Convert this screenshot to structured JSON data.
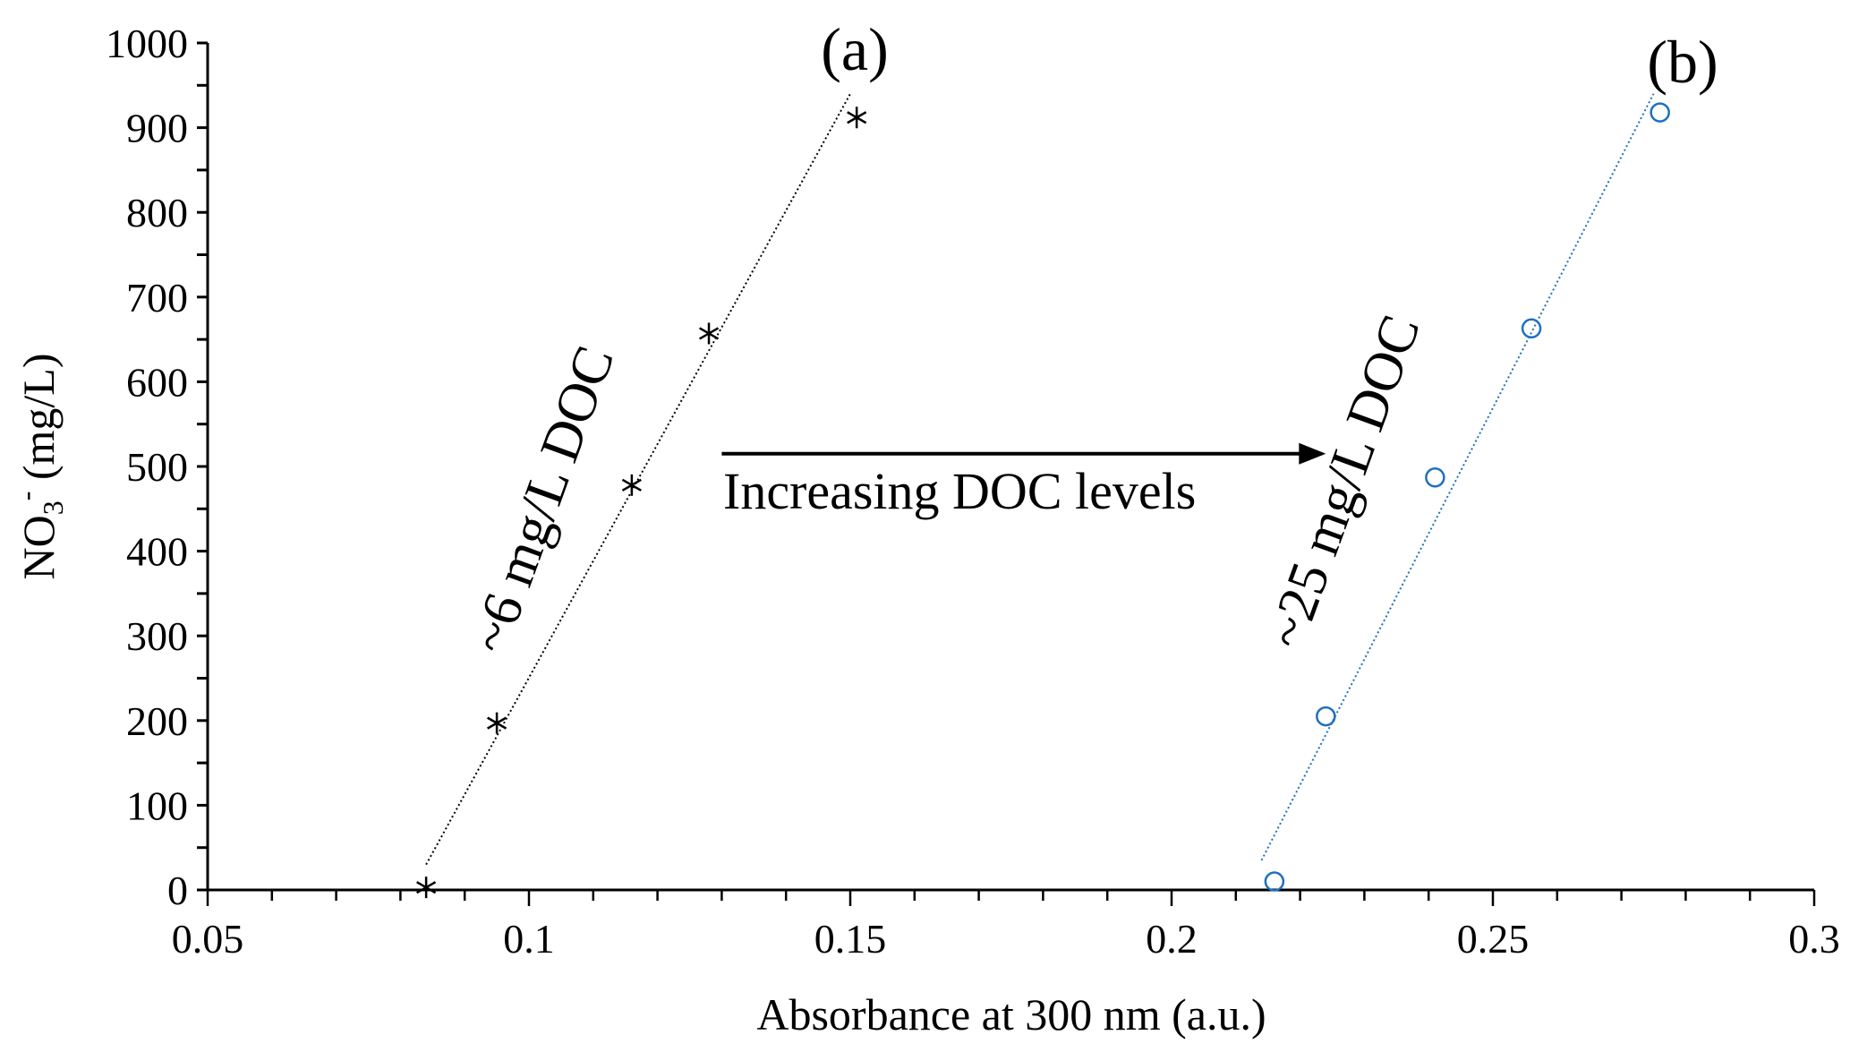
{
  "chart_data": {
    "type": "scatter",
    "xlabel": "Absorbance at 300 nm (a.u.)",
    "ylabel_main": "NO",
    "ylabel_sub": "3",
    "ylabel_sup": "-",
    "ylabel_rest": " (mg/L)",
    "xlim": [
      0.05,
      0.3
    ],
    "ylim": [
      0,
      1000
    ],
    "xticks": [
      "0.05",
      "0.1",
      "0.15",
      "0.2",
      "0.25",
      "0.3"
    ],
    "yticks": [
      "0",
      "100",
      "200",
      "300",
      "400",
      "500",
      "600",
      "700",
      "800",
      "900",
      "1000"
    ],
    "grid": false,
    "series": [
      {
        "name": "(a)",
        "label": "~6 mg/L DOC",
        "marker": "asterisk",
        "color": "#000000",
        "x": [
          0.084,
          0.095,
          0.116,
          0.128,
          0.151
        ],
        "y": [
          3,
          197,
          478,
          657,
          912
        ],
        "trend": {
          "x": [
            0.084,
            0.15
          ],
          "y": [
            30,
            940
          ]
        }
      },
      {
        "name": "(b)",
        "label": "~25 mg/L DOC",
        "marker": "circle",
        "color": "#1f6fc0",
        "x": [
          0.216,
          0.224,
          0.241,
          0.256,
          0.276
        ],
        "y": [
          10,
          205,
          487,
          663,
          918
        ],
        "trend": {
          "x": [
            0.214,
            0.275
          ],
          "y": [
            35,
            940
          ]
        }
      }
    ],
    "annotation": {
      "text": "Increasing DOC levels",
      "arrow": {
        "x": [
          0.13,
          0.224
        ],
        "y": [
          515,
          515
        ]
      }
    }
  }
}
